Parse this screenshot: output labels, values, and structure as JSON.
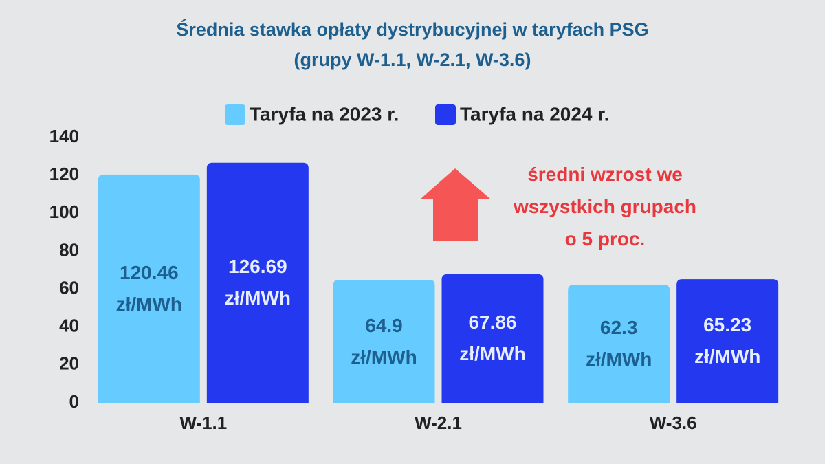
{
  "chart_data": {
    "type": "bar",
    "title": "Średnia stawka opłaty dystrybucyjnej w taryfach PSG",
    "subtitle": "(grupy W-1.1, W-2.1, W-3.6)",
    "categories": [
      "W-1.1",
      "W-2.1",
      "W-3.6"
    ],
    "series": [
      {
        "name": "Taryfa na 2023 r.",
        "color": "#66ccff",
        "values": [
          120.46,
          64.9,
          62.3
        ],
        "value_labels": [
          "120.46\nzł/MWh",
          "64.9\nzł/MWh",
          "62.3\nzł/MWh"
        ]
      },
      {
        "name": "Taryfa na 2024 r.",
        "color": "#2438f0",
        "values": [
          126.69,
          67.86,
          65.23
        ],
        "value_labels": [
          "126.69\nzł/MWh",
          "67.86\nzł/MWh",
          "65.23\nzł/MWh"
        ]
      }
    ],
    "ylim": [
      0,
      140
    ],
    "yticks": [
      0,
      20,
      40,
      60,
      80,
      100,
      120,
      140
    ],
    "grid": false,
    "legend": "top",
    "annotation": "średni wzrost we\nwszystkich grupach\no 5 proc."
  }
}
